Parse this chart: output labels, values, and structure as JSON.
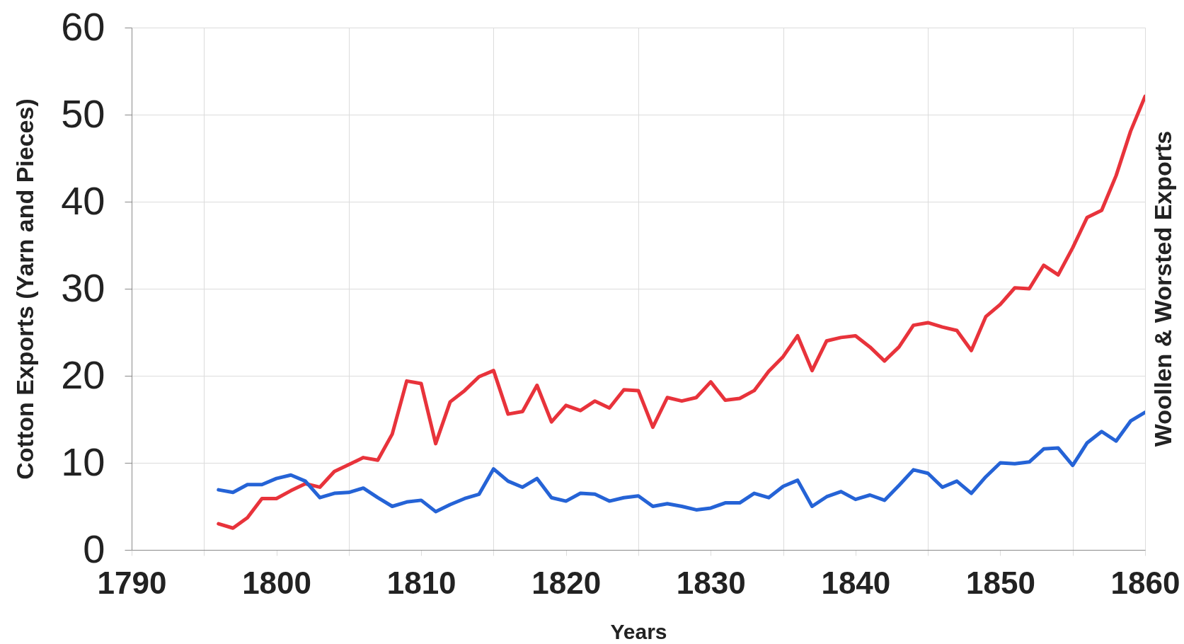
{
  "chart_data": {
    "type": "line",
    "xlabel": "Years",
    "ylabel": "Cotton Exports (Yarn and Pieces)",
    "y2label": "Woollen & Worsted Exports",
    "x": [
      1796,
      1797,
      1798,
      1799,
      1800,
      1801,
      1802,
      1803,
      1804,
      1805,
      1806,
      1807,
      1808,
      1809,
      1810,
      1811,
      1812,
      1813,
      1814,
      1815,
      1816,
      1817,
      1818,
      1819,
      1820,
      1821,
      1822,
      1823,
      1824,
      1825,
      1826,
      1827,
      1828,
      1829,
      1830,
      1831,
      1832,
      1833,
      1834,
      1835,
      1836,
      1837,
      1838,
      1839,
      1840,
      1841,
      1842,
      1843,
      1844,
      1845,
      1846,
      1847,
      1848,
      1849,
      1850,
      1851,
      1852,
      1853,
      1854,
      1855,
      1856,
      1857,
      1858,
      1859,
      1860
    ],
    "series": [
      {
        "color": "#e8333b",
        "values": [
          3.0,
          2.5,
          3.7,
          5.9,
          5.9,
          6.8,
          7.6,
          7.2,
          9.0,
          9.8,
          10.6,
          10.3,
          13.3,
          19.4,
          19.1,
          12.2,
          17.0,
          18.3,
          19.9,
          20.6,
          15.6,
          15.9,
          18.9,
          14.7,
          16.6,
          16.0,
          17.1,
          16.3,
          18.4,
          18.3,
          14.1,
          17.5,
          17.1,
          17.5,
          19.3,
          17.2,
          17.4,
          18.3,
          20.5,
          22.2,
          24.6,
          20.6,
          24.0,
          24.4,
          24.6,
          23.3,
          21.7,
          23.3,
          25.8,
          26.1,
          25.6,
          25.2,
          22.9,
          26.8,
          28.2,
          30.1,
          30.0,
          32.7,
          31.6,
          34.7,
          38.2,
          39.0,
          43.0,
          48.1,
          52.1
        ]
      },
      {
        "color": "#2563d6",
        "values": [
          6.9,
          6.6,
          7.5,
          7.5,
          8.2,
          8.6,
          7.9,
          6.0,
          6.5,
          6.6,
          7.1,
          6.0,
          5.0,
          5.5,
          5.7,
          4.4,
          5.2,
          5.9,
          6.4,
          9.3,
          7.9,
          7.2,
          8.2,
          6.0,
          5.6,
          6.5,
          6.4,
          5.6,
          6.0,
          6.2,
          5.0,
          5.3,
          5.0,
          4.6,
          4.8,
          5.4,
          5.4,
          6.5,
          6.0,
          7.3,
          8.0,
          5.0,
          6.1,
          6.7,
          5.8,
          6.3,
          5.7,
          7.4,
          9.2,
          8.8,
          7.2,
          7.9,
          6.5,
          8.4,
          10.0,
          9.9,
          10.1,
          11.6,
          11.7,
          9.7,
          12.3,
          13.6,
          12.5,
          14.8,
          15.8
        ]
      }
    ],
    "xlim": [
      1790,
      1860
    ],
    "xticks": [
      1790,
      {
        "value": 1795,
        "label": null
      },
      1800,
      {
        "value": 1805,
        "label": null
      },
      1810,
      {
        "value": 1815,
        "label": null
      },
      1820,
      {
        "value": 1825,
        "label": null
      },
      1830,
      {
        "value": 1835,
        "label": null
      },
      1840,
      {
        "value": 1845,
        "label": null
      },
      1850,
      {
        "value": 1855,
        "label": null
      },
      1860
    ],
    "ylim": [
      0,
      60
    ],
    "yticks": [
      0,
      10,
      20,
      30,
      40,
      50,
      60
    ],
    "grid": true
  }
}
